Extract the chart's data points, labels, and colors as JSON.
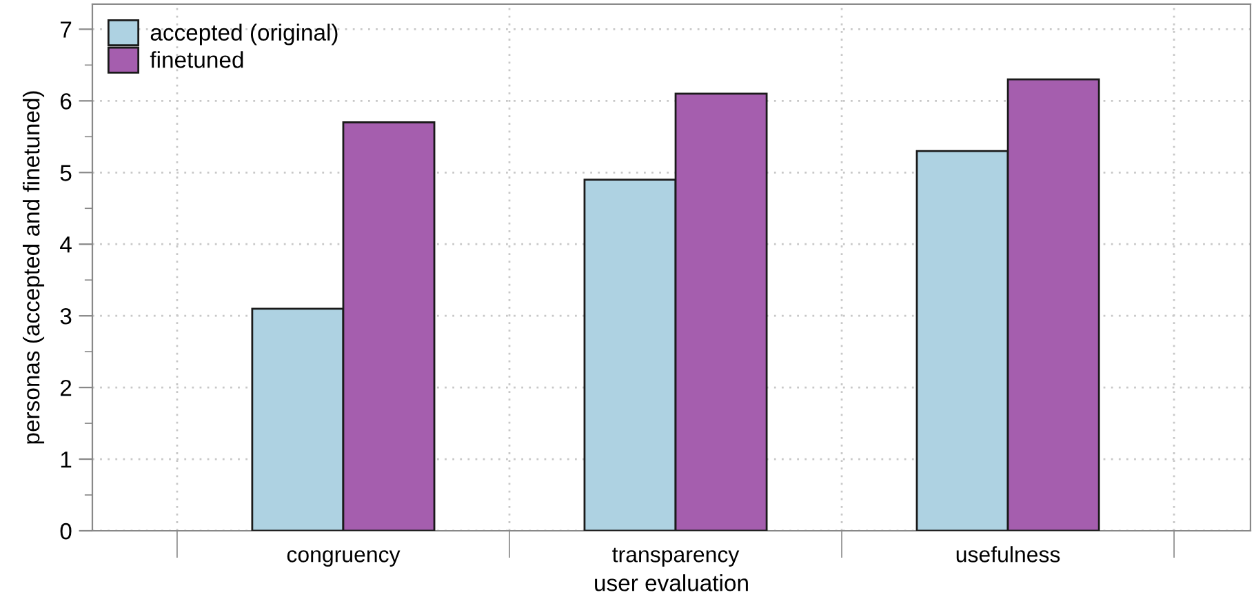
{
  "chart_data": {
    "type": "bar",
    "xlabel": "user evaluation",
    "ylabel": "personas (accepted and finetuned)",
    "categories": [
      "congruency",
      "transparency",
      "usefulness"
    ],
    "series": [
      {
        "name": "accepted (original)",
        "color": "#aed2e2",
        "values": [
          3.1,
          4.9,
          5.3
        ]
      },
      {
        "name": "finetuned",
        "color": "#a55eae",
        "values": [
          5.7,
          6.1,
          6.3
        ]
      }
    ],
    "ylim": [
      0,
      7.35
    ],
    "yticks": [
      0,
      1,
      2,
      3,
      4,
      5,
      6,
      7
    ],
    "grid": true,
    "legend": "top left"
  }
}
